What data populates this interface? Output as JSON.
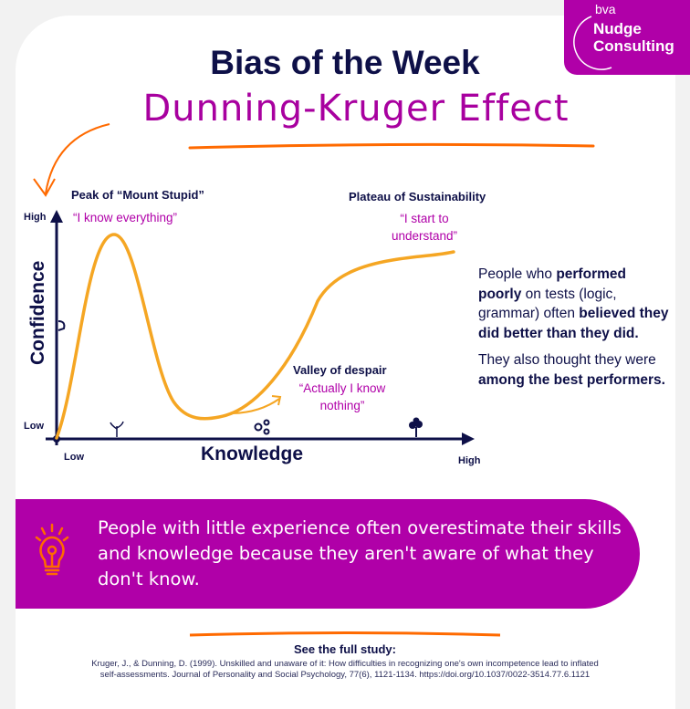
{
  "header": {
    "title": "Bias of the Week",
    "subtitle": "Dunning-Kruger Effect"
  },
  "logo": {
    "brand_text": "bva",
    "name_line1": "Nudge",
    "name_line2": "Consulting"
  },
  "diagram": {
    "y_axis_label": "Confidence",
    "x_axis_label": "Knowledge",
    "y_high": "High",
    "y_low": "Low",
    "x_low": "Low",
    "x_high": "High",
    "stages": [
      {
        "name": "Peak of “Mount Stupid”",
        "quote": "“I know everything”"
      },
      {
        "name": "Valley of despair",
        "quote": "“Actually I know nothing”"
      },
      {
        "name": "Plateau of Sustainability",
        "quote": "“I start to understand”"
      }
    ],
    "curve_color": "#f5a623",
    "axis_color": "#0e1048"
  },
  "side": {
    "p1_a": "People who ",
    "p1_b": "performed poorly",
    "p1_c": " on tests (logic, grammar) often ",
    "p1_d": "believed they did better than they did.",
    "p2_a": "They also thought they were ",
    "p2_b": "among the best performers."
  },
  "banner": {
    "text": "People with little experience often overestimate their skills and knowledge because they aren't aware of what they don't know.",
    "icon": "lightbulb-icon"
  },
  "footer": {
    "see_label": "See the full study:",
    "citation": "Kruger, J., & Dunning, D. (1999). Unskilled and unaware of it: How difficulties in recognizing one's own incompetence lead to inflated self-assessments. Journal of Personality and Social Psychology, 77(6), 1121-1134. https://doi.org/10.1037/0022-3514.77.6.1121"
  },
  "colors": {
    "navy": "#0e1048",
    "purple": "#b000a8",
    "orange": "#ff6a00",
    "curve": "#f5a623"
  }
}
